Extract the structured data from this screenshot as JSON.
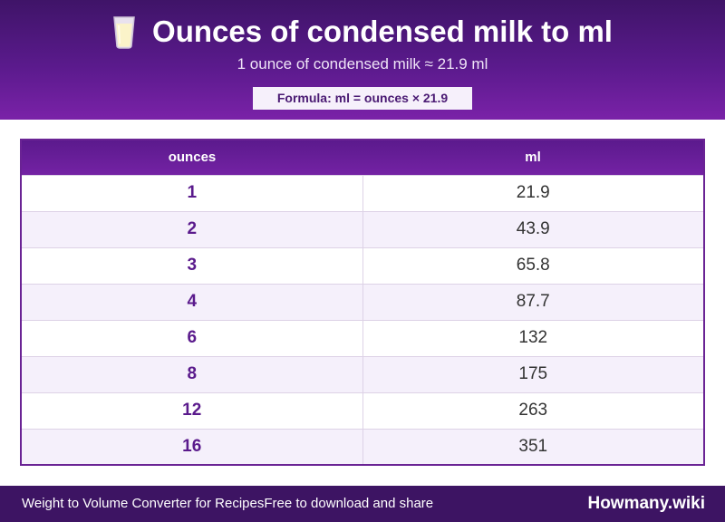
{
  "header": {
    "title": "Ounces of condensed milk to ml",
    "subtitle": "1 ounce of condensed milk ≈ 21.9 ml",
    "formula": "Formula: ml = ounces × 21.9",
    "icon": "glass-of-milk-icon"
  },
  "table": {
    "columns": [
      "ounces",
      "ml"
    ],
    "rows": [
      {
        "ounces": "1",
        "ml": "21.9"
      },
      {
        "ounces": "2",
        "ml": "43.9"
      },
      {
        "ounces": "3",
        "ml": "65.8"
      },
      {
        "ounces": "4",
        "ml": "87.7"
      },
      {
        "ounces": "6",
        "ml": "132"
      },
      {
        "ounces": "8",
        "ml": "175"
      },
      {
        "ounces": "12",
        "ml": "263"
      },
      {
        "ounces": "16",
        "ml": "351"
      }
    ]
  },
  "footer": {
    "left_text": "Weight to Volume Converter for Recipes",
    "middle_text": "Free to download and share",
    "brand": "Howmany.wiki"
  },
  "colors": {
    "header_dark": "#3f1468",
    "header_light": "#7a22a8",
    "accent": "#5a1a8c",
    "row_alt": "#f5f0fb",
    "footer": "#3d1463"
  }
}
